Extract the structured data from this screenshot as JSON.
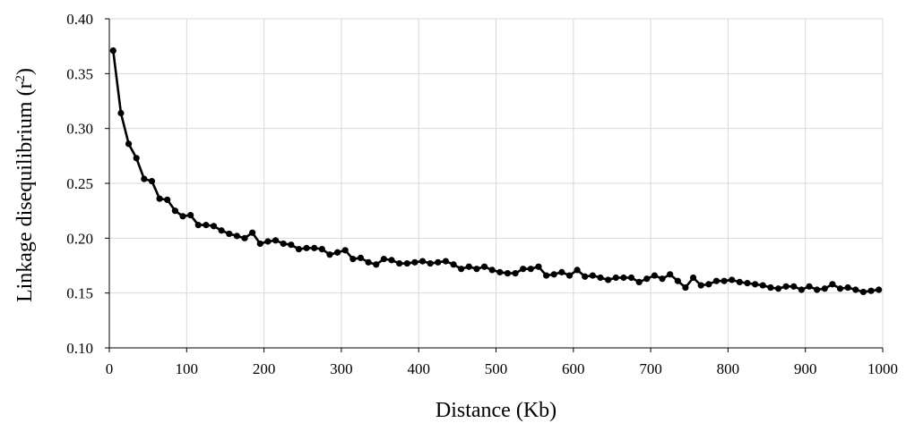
{
  "chart_data": {
    "type": "line",
    "title": "",
    "xlabel": "Distance (Kb)",
    "ylabel": "Linkage disequilibrium (r2)",
    "ylabel_main": "Linkage disequilibrium (r",
    "ylabel_sup": "2",
    "ylabel_close": ")",
    "xlim": [
      0,
      1000
    ],
    "ylim": [
      0.1,
      0.4
    ],
    "xticks": [
      "0",
      "100",
      "200",
      "300",
      "400",
      "500",
      "600",
      "700",
      "800",
      "900",
      "1000"
    ],
    "yticks": [
      "0.10",
      "0.15",
      "0.20",
      "0.25",
      "0.30",
      "0.35",
      "0.40"
    ],
    "grid": true,
    "legend": "none",
    "series": [
      {
        "color": "#000000",
        "x": [
          5,
          15,
          25,
          35,
          45,
          55,
          65,
          75,
          85,
          95,
          105,
          115,
          125,
          135,
          145,
          155,
          165,
          175,
          185,
          195,
          205,
          215,
          225,
          235,
          245,
          255,
          265,
          275,
          285,
          295,
          305,
          315,
          325,
          335,
          345,
          355,
          365,
          375,
          385,
          395,
          405,
          415,
          425,
          435,
          445,
          455,
          465,
          475,
          485,
          495,
          505,
          515,
          525,
          535,
          545,
          555,
          565,
          575,
          585,
          595,
          605,
          615,
          625,
          635,
          645,
          655,
          665,
          675,
          685,
          695,
          705,
          715,
          725,
          735,
          745,
          755,
          765,
          775,
          785,
          795,
          805,
          815,
          825,
          835,
          845,
          855,
          865,
          875,
          885,
          895,
          905,
          915,
          925,
          935,
          945,
          955,
          965,
          975,
          985,
          995
        ],
        "y": [
          0.371,
          0.314,
          0.286,
          0.273,
          0.254,
          0.252,
          0.236,
          0.235,
          0.225,
          0.22,
          0.221,
          0.212,
          0.212,
          0.211,
          0.207,
          0.204,
          0.202,
          0.2,
          0.205,
          0.195,
          0.197,
          0.198,
          0.195,
          0.194,
          0.19,
          0.191,
          0.191,
          0.19,
          0.185,
          0.187,
          0.189,
          0.181,
          0.182,
          0.178,
          0.176,
          0.181,
          0.18,
          0.177,
          0.177,
          0.178,
          0.179,
          0.177,
          0.178,
          0.179,
          0.176,
          0.172,
          0.174,
          0.172,
          0.174,
          0.171,
          0.169,
          0.168,
          0.168,
          0.172,
          0.172,
          0.174,
          0.166,
          0.167,
          0.169,
          0.166,
          0.171,
          0.165,
          0.166,
          0.164,
          0.162,
          0.164,
          0.164,
          0.164,
          0.16,
          0.163,
          0.166,
          0.163,
          0.167,
          0.161,
          0.155,
          0.164,
          0.157,
          0.158,
          0.161,
          0.161,
          0.162,
          0.16,
          0.159,
          0.158,
          0.157,
          0.155,
          0.154,
          0.156,
          0.156,
          0.153,
          0.156,
          0.153,
          0.154,
          0.158,
          0.154,
          0.155,
          0.153,
          0.151,
          0.152,
          0.153
        ]
      }
    ]
  }
}
